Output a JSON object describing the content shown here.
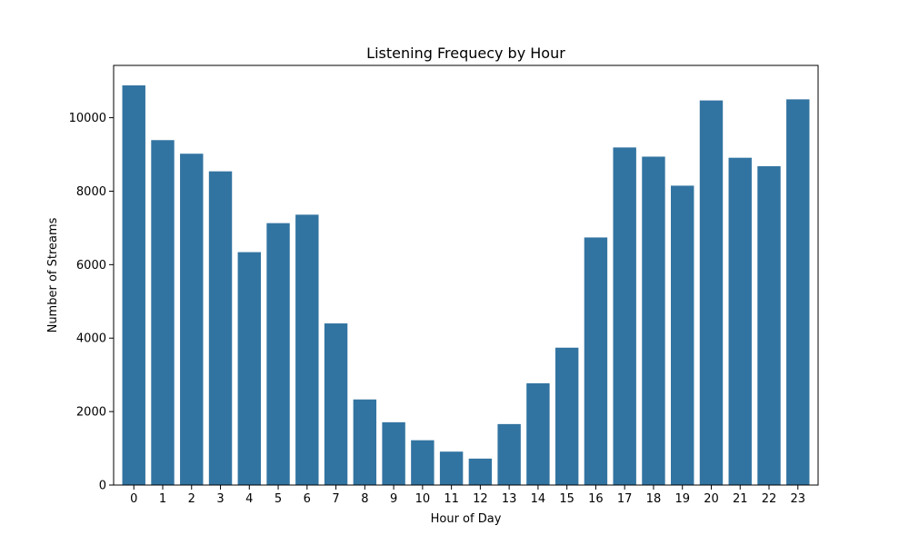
{
  "chart_data": {
    "type": "bar",
    "title": "Listening Frequecy by Hour",
    "xlabel": "Hour of Day",
    "ylabel": "Number of Streams",
    "categories": [
      "0",
      "1",
      "2",
      "3",
      "4",
      "5",
      "6",
      "7",
      "8",
      "9",
      "10",
      "11",
      "12",
      "13",
      "14",
      "15",
      "16",
      "17",
      "18",
      "19",
      "20",
      "21",
      "22",
      "23"
    ],
    "values": [
      10880,
      9390,
      9020,
      8540,
      6340,
      7130,
      7360,
      4400,
      2330,
      1710,
      1220,
      910,
      720,
      1660,
      2770,
      3740,
      6740,
      9190,
      8940,
      8150,
      10470,
      8910,
      8680,
      10500
    ],
    "yticks": [
      0,
      2000,
      4000,
      6000,
      8000,
      10000
    ],
    "ytick_labels": [
      "0",
      "2000",
      "4000",
      "6000",
      "8000",
      "10000"
    ],
    "ylim": [
      0,
      11424
    ],
    "bar_color": "#3274a1",
    "grid": false,
    "legend": "none"
  }
}
